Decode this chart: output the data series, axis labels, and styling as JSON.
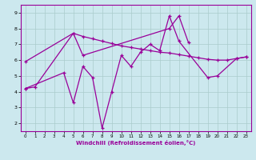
{
  "xlabel": "Windchill (Refroidissement éolien,°C)",
  "bg_color": "#cce8ee",
  "line_color": "#990099",
  "grid_color": "#aacccc",
  "xlim": [
    -0.5,
    23.5
  ],
  "ylim": [
    1.5,
    9.5
  ],
  "xticks": [
    0,
    1,
    2,
    3,
    4,
    5,
    6,
    7,
    8,
    9,
    10,
    11,
    12,
    13,
    14,
    15,
    16,
    17,
    18,
    19,
    20,
    21,
    22,
    23
  ],
  "yticks": [
    2,
    3,
    4,
    5,
    6,
    7,
    8,
    9
  ],
  "series1_x": [
    0,
    1,
    5,
    6,
    15,
    16,
    17
  ],
  "series1_y": [
    4.2,
    4.3,
    7.7,
    6.3,
    8.0,
    8.8,
    7.1
  ],
  "series2_x": [
    0,
    5,
    6,
    7,
    8,
    9,
    10,
    11,
    12,
    13,
    14,
    15,
    16,
    17,
    18,
    19,
    20,
    21,
    22,
    23
  ],
  "series2_y": [
    5.9,
    7.7,
    7.5,
    7.35,
    7.2,
    7.05,
    6.9,
    6.8,
    6.7,
    6.6,
    6.5,
    6.45,
    6.35,
    6.25,
    6.15,
    6.05,
    6.0,
    6.0,
    6.1,
    6.2
  ],
  "series3_x": [
    0,
    4,
    5,
    6,
    7,
    8,
    9,
    10,
    11,
    12,
    13,
    14,
    15,
    16,
    19,
    20,
    22,
    23
  ],
  "series3_y": [
    4.2,
    5.2,
    3.3,
    5.6,
    4.9,
    1.7,
    4.0,
    6.3,
    5.6,
    6.5,
    7.0,
    6.6,
    8.8,
    7.2,
    4.9,
    5.0,
    6.1,
    6.2
  ]
}
